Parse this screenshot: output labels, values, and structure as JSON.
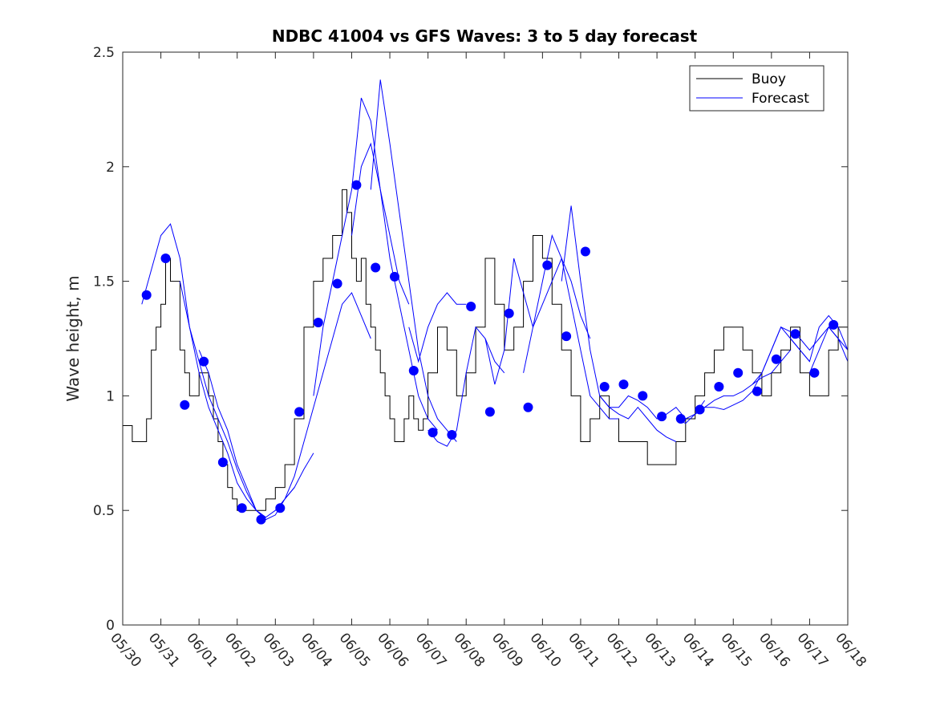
{
  "chart_data": {
    "type": "line",
    "title": "NDBC 41004 vs GFS Waves: 3 to 5 day forecast",
    "xlabel": "",
    "ylabel": "Wave height, m",
    "xlim": [
      "05/30",
      "06/18"
    ],
    "ylim": [
      0,
      2.5
    ],
    "y_ticks": [
      0,
      0.5,
      1,
      1.5,
      2,
      2.5
    ],
    "y_tick_labels": [
      "0",
      "0.5",
      "1",
      "1.5",
      "2",
      "2.5"
    ],
    "x_ticks": [
      "05/30",
      "05/31",
      "06/01",
      "06/02",
      "06/03",
      "06/04",
      "06/05",
      "06/06",
      "06/07",
      "06/08",
      "06/09",
      "06/10",
      "06/11",
      "06/12",
      "06/13",
      "06/14",
      "06/15",
      "06/16",
      "06/17",
      "06/18"
    ],
    "grid": false,
    "legend": {
      "position": "top-right",
      "entries": [
        "Buoy",
        "Forecast"
      ]
    },
    "colors": {
      "buoy": "#000000",
      "forecast": "#0000ff"
    },
    "series": [
      {
        "name": "Buoy",
        "type": "line",
        "x": [
          "05/30 00:00",
          "05/30 06:00",
          "05/30 12:00",
          "05/30 15:00",
          "05/30 18:00",
          "05/30 21:00",
          "05/31 00:00",
          "05/31 03:00",
          "05/31 06:00",
          "05/31 09:00",
          "05/31 12:00",
          "05/31 15:00",
          "05/31 18:00",
          "05/31 21:00",
          "06/01 00:00",
          "06/01 03:00",
          "06/01 06:00",
          "06/01 09:00",
          "06/01 12:00",
          "06/01 15:00",
          "06/01 18:00",
          "06/01 21:00",
          "06/02 00:00",
          "06/02 03:00",
          "06/02 06:00",
          "06/02 09:00",
          "06/02 12:00",
          "06/02 15:00",
          "06/02 18:00",
          "06/03 00:00",
          "06/03 06:00",
          "06/03 12:00",
          "06/03 18:00",
          "06/04 00:00",
          "06/04 06:00",
          "06/04 12:00",
          "06/04 18:00",
          "06/04 21:00",
          "06/05 00:00",
          "06/05 03:00",
          "06/05 06:00",
          "06/05 09:00",
          "06/05 12:00",
          "06/05 15:00",
          "06/05 18:00",
          "06/05 21:00",
          "06/06 00:00",
          "06/06 03:00",
          "06/06 06:00",
          "06/06 09:00",
          "06/06 12:00",
          "06/06 15:00",
          "06/06 18:00",
          "06/06 21:00",
          "06/07 00:00",
          "06/07 06:00",
          "06/07 12:00",
          "06/07 18:00",
          "06/08 00:00",
          "06/08 06:00",
          "06/08 12:00",
          "06/08 18:00",
          "06/09 00:00",
          "06/09 06:00",
          "06/09 12:00",
          "06/09 18:00",
          "06/10 00:00",
          "06/10 06:00",
          "06/10 12:00",
          "06/10 18:00",
          "06/11 00:00",
          "06/11 06:00",
          "06/11 12:00",
          "06/11 18:00",
          "06/12 00:00",
          "06/12 06:00",
          "06/12 12:00",
          "06/12 18:00",
          "06/13 00:00",
          "06/13 06:00",
          "06/13 12:00",
          "06/13 18:00",
          "06/14 00:00",
          "06/14 06:00",
          "06/14 12:00",
          "06/14 18:00",
          "06/15 00:00",
          "06/15 06:00",
          "06/15 12:00",
          "06/15 18:00",
          "06/16 00:00",
          "06/16 06:00",
          "06/16 12:00",
          "06/16 18:00",
          "06/17 00:00",
          "06/17 06:00",
          "06/17 12:00",
          "06/17 18:00",
          "06/18 00:00"
        ],
        "y": [
          0.87,
          0.8,
          0.8,
          0.9,
          1.2,
          1.3,
          1.4,
          1.6,
          1.5,
          1.5,
          1.2,
          1.1,
          1.0,
          1.0,
          1.1,
          1.1,
          1.0,
          0.9,
          0.8,
          0.7,
          0.6,
          0.55,
          0.5,
          0.5,
          0.5,
          0.5,
          0.5,
          0.5,
          0.55,
          0.6,
          0.7,
          0.9,
          1.3,
          1.5,
          1.6,
          1.7,
          1.9,
          1.8,
          1.6,
          1.5,
          1.6,
          1.4,
          1.3,
          1.2,
          1.1,
          1.0,
          0.9,
          0.8,
          0.8,
          0.9,
          1.0,
          0.9,
          0.85,
          0.9,
          1.1,
          1.3,
          1.2,
          1.0,
          1.1,
          1.3,
          1.6,
          1.4,
          1.2,
          1.3,
          1.5,
          1.7,
          1.6,
          1.4,
          1.2,
          1.0,
          0.8,
          0.9,
          1.0,
          0.9,
          0.8,
          0.8,
          0.8,
          0.7,
          0.7,
          0.7,
          0.8,
          0.9,
          1.0,
          1.1,
          1.2,
          1.3,
          1.3,
          1.2,
          1.1,
          1.0,
          1.1,
          1.2,
          1.3,
          1.1,
          1.0,
          1.0,
          1.2,
          1.3,
          1.2
        ]
      },
      {
        "name": "Forecast",
        "type": "line",
        "runs": [
          {
            "x": [
              "05/30 12:00",
              "05/30 18:00",
              "05/31 00:00",
              "05/31 06:00",
              "05/31 12:00",
              "05/31 18:00",
              "06/01 00:00",
              "06/01 06:00",
              "06/01 12:00",
              "06/01 18:00",
              "06/02 00:00",
              "06/02 06:00",
              "06/02 12:00",
              "06/02 18:00"
            ],
            "y": [
              1.4,
              1.55,
              1.7,
              1.75,
              1.6,
              1.3,
              1.1,
              0.95,
              0.85,
              0.75,
              0.62,
              0.55,
              0.5,
              0.47
            ]
          },
          {
            "x": [
              "05/31 12:00",
              "05/31 18:00",
              "06/01 00:00",
              "06/01 06:00",
              "06/01 12:00",
              "06/01 18:00",
              "06/02 00:00",
              "06/02 06:00",
              "06/02 12:00",
              "06/02 18:00",
              "06/03 00:00",
              "06/03 06:00",
              "06/03 12:00"
            ],
            "y": [
              1.5,
              1.3,
              1.15,
              1.0,
              0.9,
              0.8,
              0.68,
              0.58,
              0.5,
              0.47,
              0.5,
              0.55,
              0.6
            ]
          },
          {
            "x": [
              "06/01 00:00",
              "06/01 06:00",
              "06/01 12:00",
              "06/01 18:00",
              "06/02 00:00",
              "06/02 06:00",
              "06/02 12:00",
              "06/02 18:00",
              "06/03 00:00",
              "06/03 06:00",
              "06/03 12:00",
              "06/03 18:00",
              "06/04 00:00"
            ],
            "y": [
              1.2,
              1.1,
              0.95,
              0.85,
              0.7,
              0.6,
              0.5,
              0.46,
              0.48,
              0.55,
              0.6,
              0.68,
              0.75
            ]
          },
          {
            "x": [
              "06/03 06:00",
              "06/03 12:00",
              "06/03 18:00",
              "06/04 00:00",
              "06/04 06:00",
              "06/04 12:00",
              "06/04 18:00",
              "06/05 00:00",
              "06/05 06:00",
              "06/05 12:00"
            ],
            "y": [
              0.55,
              0.65,
              0.8,
              0.95,
              1.1,
              1.25,
              1.4,
              1.45,
              1.35,
              1.25
            ]
          },
          {
            "x": [
              "06/04 00:00",
              "06/04 06:00",
              "06/04 12:00",
              "06/04 18:00",
              "06/05 00:00",
              "06/05 06:00",
              "06/05 12:00",
              "06/05 18:00",
              "06/06 00:00",
              "06/06 06:00",
              "06/06 12:00"
            ],
            "y": [
              1.0,
              1.3,
              1.5,
              1.7,
              1.9,
              2.3,
              2.2,
              1.9,
              1.7,
              1.5,
              1.4
            ]
          },
          {
            "x": [
              "06/05 00:00",
              "06/05 06:00",
              "06/05 12:00",
              "06/05 18:00",
              "06/06 00:00",
              "06/06 06:00",
              "06/06 12:00",
              "06/06 18:00",
              "06/07 00:00",
              "06/07 06:00"
            ],
            "y": [
              1.7,
              2.0,
              2.1,
              1.9,
              1.6,
              1.4,
              1.2,
              1.0,
              0.9,
              0.85
            ]
          },
          {
            "x": [
              "06/05 12:00",
              "06/05 18:00",
              "06/06 00:00",
              "06/06 06:00",
              "06/06 12:00",
              "06/06 18:00",
              "06/07 00:00",
              "06/07 06:00",
              "06/07 12:00",
              "06/07 18:00"
            ],
            "y": [
              1.9,
              2.38,
              2.1,
              1.8,
              1.5,
              1.2,
              1.0,
              0.9,
              0.85,
              0.8
            ]
          },
          {
            "x": [
              "06/06 12:00",
              "06/06 18:00",
              "06/07 00:00",
              "06/07 06:00",
              "06/07 12:00",
              "06/07 18:00",
              "06/08 00:00"
            ],
            "y": [
              1.3,
              1.15,
              1.3,
              1.4,
              1.45,
              1.4,
              1.4
            ]
          },
          {
            "x": [
              "06/07 00:00",
              "06/07 06:00",
              "06/07 12:00",
              "06/07 18:00",
              "06/08 00:00",
              "06/08 06:00",
              "06/08 12:00",
              "06/08 18:00",
              "06/09 00:00"
            ],
            "y": [
              0.85,
              0.8,
              0.78,
              0.85,
              1.1,
              1.3,
              1.25,
              1.15,
              1.1
            ]
          },
          {
            "x": [
              "06/08 12:00",
              "06/08 18:00",
              "06/09 00:00",
              "06/09 06:00",
              "06/09 12:00",
              "06/09 18:00",
              "06/10 00:00",
              "06/10 06:00",
              "06/10 12:00",
              "06/10 18:00",
              "06/11 00:00",
              "06/11 06:00"
            ],
            "y": [
              1.25,
              1.05,
              1.2,
              1.6,
              1.45,
              1.3,
              1.4,
              1.5,
              1.6,
              1.5,
              1.35,
              1.25
            ]
          },
          {
            "x": [
              "06/09 12:00",
              "06/09 18:00",
              "06/10 00:00",
              "06/10 06:00",
              "06/10 12:00",
              "06/10 18:00",
              "06/11 00:00",
              "06/11 06:00",
              "06/11 12:00",
              "06/11 18:00",
              "06/12 00:00"
            ],
            "y": [
              1.1,
              1.3,
              1.5,
              1.7,
              1.6,
              1.4,
              1.2,
              1.0,
              0.95,
              0.9,
              0.9
            ]
          },
          {
            "x": [
              "06/10 12:00",
              "06/10 18:00",
              "06/11 00:00",
              "06/11 06:00",
              "06/11 12:00",
              "06/11 18:00",
              "06/12 00:00",
              "06/12 06:00",
              "06/12 12:00",
              "06/12 18:00",
              "06/13 00:00",
              "06/13 06:00",
              "06/13 12:00"
            ],
            "y": [
              1.5,
              1.83,
              1.5,
              1.2,
              1.0,
              0.95,
              0.92,
              0.9,
              0.95,
              0.9,
              0.85,
              0.82,
              0.8
            ]
          },
          {
            "x": [
              "06/11 12:00",
              "06/11 18:00",
              "06/12 00:00",
              "06/12 06:00",
              "06/12 12:00",
              "06/12 18:00",
              "06/13 00:00",
              "06/13 06:00",
              "06/13 12:00",
              "06/13 18:00",
              "06/14 00:00",
              "06/14 06:00"
            ],
            "y": [
              1.0,
              0.95,
              0.95,
              1.0,
              0.98,
              0.95,
              0.9,
              0.92,
              0.95,
              0.9,
              0.92,
              0.98
            ]
          },
          {
            "x": [
              "06/13 12:00",
              "06/13 18:00",
              "06/14 00:00",
              "06/14 06:00",
              "06/14 12:00",
              "06/14 18:00",
              "06/15 00:00",
              "06/15 06:00",
              "06/15 12:00",
              "06/15 18:00",
              "06/16 00:00",
              "06/16 06:00",
              "06/16 12:00"
            ],
            "y": [
              0.9,
              0.88,
              0.92,
              0.95,
              0.98,
              1.0,
              1.0,
              1.02,
              1.05,
              1.08,
              1.1,
              1.15,
              1.2
            ]
          },
          {
            "x": [
              "06/14 00:00",
              "06/14 06:00",
              "06/14 12:00",
              "06/14 18:00",
              "06/15 00:00",
              "06/15 06:00",
              "06/15 12:00",
              "06/15 18:00",
              "06/16 00:00",
              "06/16 06:00",
              "06/16 12:00",
              "06/16 18:00",
              "06/17 00:00"
            ],
            "y": [
              0.92,
              0.95,
              0.95,
              0.94,
              0.96,
              0.98,
              1.02,
              1.1,
              1.2,
              1.3,
              1.25,
              1.2,
              1.15
            ]
          },
          {
            "x": [
              "06/15 12:00",
              "06/15 18:00",
              "06/16 00:00",
              "06/16 06:00",
              "06/16 12:00",
              "06/16 18:00",
              "06/17 00:00",
              "06/17 06:00",
              "06/17 12:00",
              "06/17 18:00",
              "06/18 00:00"
            ],
            "y": [
              1.05,
              1.1,
              1.2,
              1.3,
              1.28,
              1.25,
              1.2,
              1.25,
              1.3,
              1.25,
              1.2
            ]
          },
          {
            "x": [
              "06/16 12:00",
              "06/16 18:00",
              "06/17 00:00",
              "06/17 06:00",
              "06/17 12:00",
              "06/17 18:00",
              "06/18 00:00"
            ],
            "y": [
              1.25,
              1.2,
              1.15,
              1.3,
              1.35,
              1.3,
              1.2
            ]
          },
          {
            "x": [
              "06/17 00:00",
              "06/17 06:00",
              "06/17 12:00",
              "06/17 18:00",
              "06/18 00:00"
            ],
            "y": [
              1.1,
              1.2,
              1.3,
              1.25,
              1.15
            ]
          }
        ],
        "markers": {
          "x": [
            "05/30 15:00",
            "05/31 03:00",
            "05/31 15:00",
            "06/01 03:00",
            "06/01 15:00",
            "06/02 03:00",
            "06/02 15:00",
            "06/03 03:00",
            "06/03 15:00",
            "06/04 03:00",
            "06/04 15:00",
            "06/05 03:00",
            "06/05 15:00",
            "06/06 03:00",
            "06/06 15:00",
            "06/07 03:00",
            "06/07 15:00",
            "06/08 03:00",
            "06/08 15:00",
            "06/09 03:00",
            "06/09 15:00",
            "06/10 03:00",
            "06/10 15:00",
            "06/11 03:00",
            "06/11 15:00",
            "06/12 03:00",
            "06/12 15:00",
            "06/13 03:00",
            "06/13 15:00",
            "06/14 03:00",
            "06/14 15:00",
            "06/15 03:00",
            "06/15 15:00",
            "06/16 03:00",
            "06/16 15:00",
            "06/17 03:00",
            "06/17 15:00"
          ],
          "y": [
            1.44,
            1.6,
            0.96,
            1.15,
            0.71,
            0.51,
            0.46,
            0.51,
            0.93,
            1.32,
            1.49,
            1.92,
            1.56,
            1.52,
            1.11,
            0.84,
            0.83,
            1.39,
            0.93,
            1.36,
            0.95,
            1.57,
            1.26,
            1.63,
            1.04,
            1.05,
            1.0,
            0.91,
            0.9,
            0.94,
            1.04,
            1.1,
            1.02,
            1.16,
            1.27,
            1.1,
            1.31
          ]
        }
      }
    ]
  }
}
